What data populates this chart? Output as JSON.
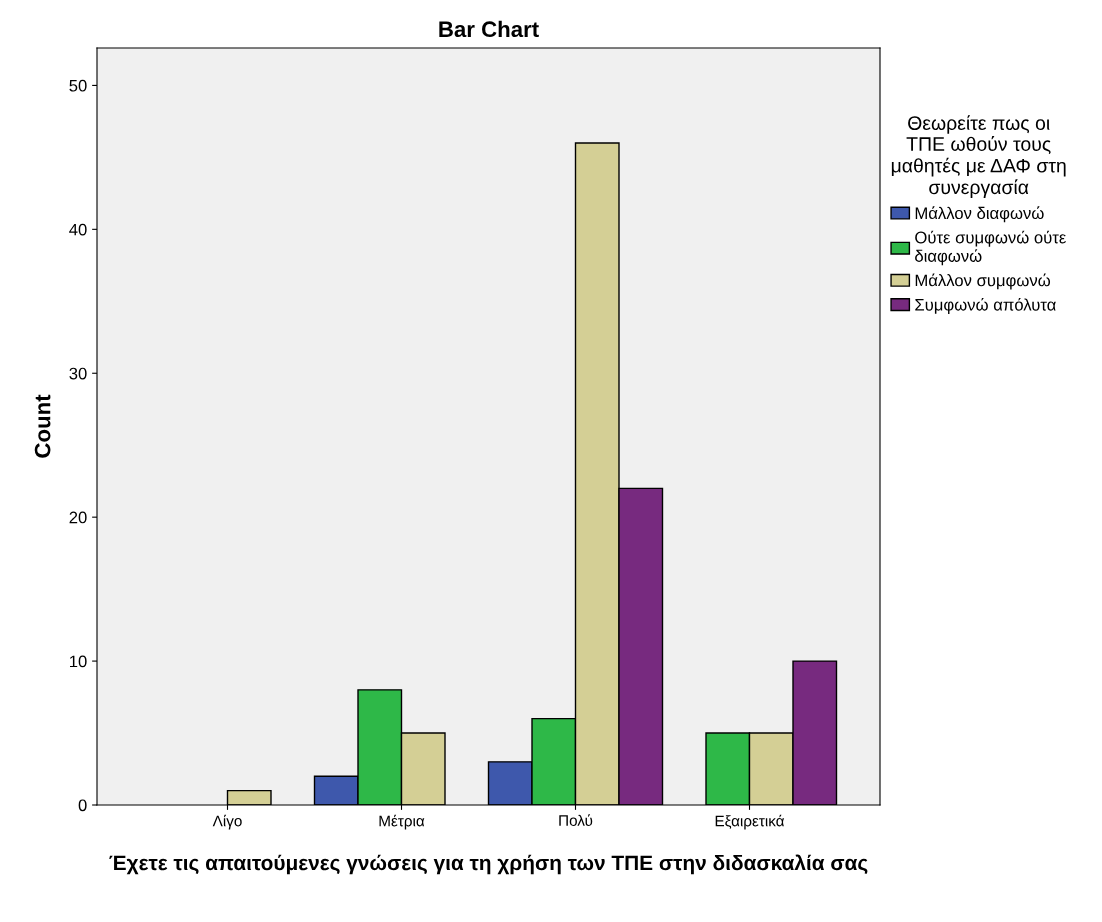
{
  "chart_data": {
    "type": "bar",
    "title": "Bar Chart",
    "xlabel": "Έχετε τις απαιτούμενες γνώσεις για τη χρήση των ΤΠΕ στην διδασκαλία σας",
    "ylabel": "Count",
    "categories": [
      "Λίγο",
      "Μέτρια",
      "Πολύ",
      "Εξαιρετικά"
    ],
    "legend_title": "Θεωρείτε πως οι ΤΠΕ ωθούν τους μαθητές με ΔΑΦ στη συνεργασία",
    "series": [
      {
        "name": "Μάλλον διαφωνώ",
        "color": "#3e58ac",
        "values": [
          null,
          2,
          3,
          null
        ]
      },
      {
        "name": "Ούτε συμφωνώ ούτε διαφωνώ",
        "color": "#2eb848",
        "values": [
          null,
          8,
          6,
          5
        ]
      },
      {
        "name": "Μάλλον συμφωνώ",
        "color": "#d4cf95",
        "values": [
          1,
          5,
          46,
          5
        ]
      },
      {
        "name": "Συμφωνώ απόλυτα",
        "color": "#772a7f",
        "values": [
          null,
          null,
          22,
          10
        ]
      }
    ],
    "ylim": [
      0,
      52.6
    ],
    "yticks": [
      0,
      10,
      20,
      30,
      40,
      50
    ],
    "grid": false,
    "legend": "right"
  }
}
